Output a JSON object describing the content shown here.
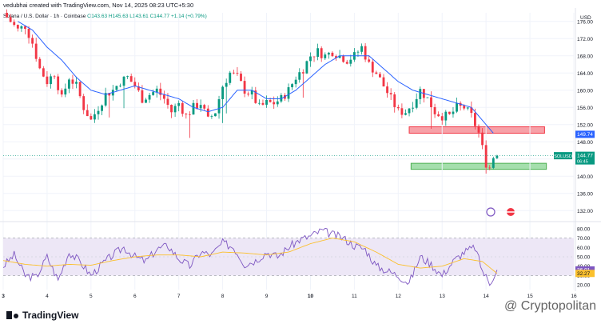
{
  "header": {
    "credit": "vedubhai created with TradingView.com, Nov 14, 2025 08:23 UTC+5:30"
  },
  "legend": {
    "symbol": "Solana / U.S. Dollar · 1h · Coinbase",
    "values": "O143.63  H145.63  L143.61  C144.77  +1.14 (+0.79%)"
  },
  "branding": {
    "logo_text": "TradingView",
    "watermark": "@ Cryptopolitan"
  },
  "colors": {
    "up": "#089981",
    "down": "#f23645",
    "ma": "#2962ff",
    "rsi": "#7e57c2",
    "rsi_ma": "#fbc02d",
    "rsi_band": "#ede7f6",
    "resistance_fill": "#f7a1a8",
    "resistance_stroke": "#f23645",
    "support_fill": "#a5dfac",
    "support_stroke": "#4caf50"
  },
  "chart_data": {
    "type": "candlestick",
    "currency": "USD",
    "ylim": [
      130,
      178
    ],
    "y_ticks": [
      132,
      136,
      140,
      144,
      148,
      152,
      156,
      160,
      164,
      168,
      172,
      176
    ],
    "y_tick_labels": [
      "132.00",
      "136.00",
      "140.00",
      "144.00",
      "148.00",
      "152.00",
      "156.00",
      "160.00",
      "164.00",
      "168.00",
      "172.00",
      "176.00"
    ],
    "x_labels": [
      {
        "t": 0,
        "label": "3"
      },
      {
        "t": 24,
        "label": "4"
      },
      {
        "t": 48,
        "label": "5"
      },
      {
        "t": 72,
        "label": "6"
      },
      {
        "t": 96,
        "label": "7"
      },
      {
        "t": 120,
        "label": "8"
      },
      {
        "t": 144,
        "label": "9"
      },
      {
        "t": 168,
        "label": "10"
      },
      {
        "t": 192,
        "label": "11"
      },
      {
        "t": 216,
        "label": "12"
      },
      {
        "t": 240,
        "label": "13"
      },
      {
        "t": 264,
        "label": "14"
      },
      {
        "t": 288,
        "label": "15"
      },
      {
        "t": 312,
        "label": "16"
      }
    ],
    "x_range": [
      0,
      312
    ],
    "price_anchors": [
      [
        0,
        178
      ],
      [
        4,
        176
      ],
      [
        8,
        174
      ],
      [
        12,
        175
      ],
      [
        16,
        171
      ],
      [
        20,
        165
      ],
      [
        24,
        162
      ],
      [
        28,
        164
      ],
      [
        32,
        158
      ],
      [
        36,
        163
      ],
      [
        40,
        161
      ],
      [
        44,
        156
      ],
      [
        48,
        153
      ],
      [
        52,
        156
      ],
      [
        56,
        159
      ],
      [
        60,
        160
      ],
      [
        64,
        162
      ],
      [
        68,
        163
      ],
      [
        72,
        161
      ],
      [
        76,
        158
      ],
      [
        80,
        159
      ],
      [
        84,
        160
      ],
      [
        88,
        158
      ],
      [
        92,
        155
      ],
      [
        96,
        157
      ],
      [
        100,
        154
      ],
      [
        104,
        156
      ],
      [
        108,
        157
      ],
      [
        112,
        153
      ],
      [
        116,
        155
      ],
      [
        120,
        161
      ],
      [
        124,
        164
      ],
      [
        128,
        163
      ],
      [
        132,
        160
      ],
      [
        136,
        159
      ],
      [
        140,
        156
      ],
      [
        144,
        157
      ],
      [
        148,
        157
      ],
      [
        152,
        158
      ],
      [
        156,
        160
      ],
      [
        160,
        163
      ],
      [
        164,
        165
      ],
      [
        168,
        168
      ],
      [
        172,
        169
      ],
      [
        176,
        168
      ],
      [
        180,
        169
      ],
      [
        184,
        168
      ],
      [
        188,
        167
      ],
      [
        192,
        168
      ],
      [
        196,
        170
      ],
      [
        200,
        166
      ],
      [
        204,
        164
      ],
      [
        208,
        161
      ],
      [
        212,
        158
      ],
      [
        216,
        155
      ],
      [
        220,
        155
      ],
      [
        224,
        157
      ],
      [
        228,
        160
      ],
      [
        232,
        158
      ],
      [
        236,
        155
      ],
      [
        240,
        154
      ],
      [
        244,
        154
      ],
      [
        248,
        156
      ],
      [
        252,
        156
      ],
      [
        256,
        154
      ],
      [
        260,
        150
      ],
      [
        264,
        143
      ],
      [
        266,
        142
      ],
      [
        268,
        144.5
      ],
      [
        270,
        144.77
      ]
    ],
    "ma_anchors": [
      [
        8,
        176
      ],
      [
        16,
        174
      ],
      [
        24,
        170
      ],
      [
        32,
        167
      ],
      [
        40,
        163
      ],
      [
        48,
        160
      ],
      [
        56,
        159
      ],
      [
        64,
        160
      ],
      [
        72,
        161
      ],
      [
        80,
        160
      ],
      [
        88,
        159
      ],
      [
        96,
        158
      ],
      [
        104,
        156
      ],
      [
        112,
        155
      ],
      [
        120,
        156
      ],
      [
        128,
        160
      ],
      [
        136,
        160
      ],
      [
        144,
        158
      ],
      [
        152,
        158
      ],
      [
        160,
        160
      ],
      [
        168,
        163
      ],
      [
        176,
        166
      ],
      [
        184,
        168
      ],
      [
        192,
        168
      ],
      [
        200,
        168
      ],
      [
        208,
        165
      ],
      [
        216,
        162
      ],
      [
        224,
        160
      ],
      [
        232,
        159
      ],
      [
        240,
        158
      ],
      [
        248,
        157
      ],
      [
        256,
        156
      ],
      [
        264,
        152
      ],
      [
        268,
        150
      ]
    ],
    "resistance_zone": {
      "t_start": 222,
      "t_end": 296,
      "low": 150.0,
      "high": 151.5
    },
    "support_zone": {
      "t_start": 223,
      "t_end": 297,
      "low": 141.6,
      "high": 143.0
    },
    "last_price": {
      "symbol": "SOLUSD",
      "value": "144.77",
      "countdown": "06:45"
    },
    "ma_value": {
      "value": "149.74"
    },
    "rsi": {
      "ylim": [
        15,
        85
      ],
      "y_ticks": [
        20,
        30,
        40,
        50,
        60,
        70,
        80
      ],
      "y_tick_labels": [
        "20.00",
        "30.00",
        "40.00",
        "50.00",
        "60.00",
        "70.00",
        "80.00"
      ],
      "band": [
        30,
        70
      ],
      "rsi_value": "36.01",
      "ma_value": "32.27",
      "rsi_anchors": [
        [
          0,
          40
        ],
        [
          6,
          52
        ],
        [
          12,
          30
        ],
        [
          18,
          28
        ],
        [
          24,
          50
        ],
        [
          30,
          25
        ],
        [
          36,
          55
        ],
        [
          42,
          45
        ],
        [
          48,
          30
        ],
        [
          54,
          42
        ],
        [
          60,
          52
        ],
        [
          66,
          60
        ],
        [
          72,
          50
        ],
        [
          78,
          45
        ],
        [
          84,
          58
        ],
        [
          90,
          62
        ],
        [
          96,
          48
        ],
        [
          102,
          40
        ],
        [
          108,
          55
        ],
        [
          114,
          52
        ],
        [
          120,
          65
        ],
        [
          126,
          60
        ],
        [
          132,
          42
        ],
        [
          138,
          46
        ],
        [
          144,
          55
        ],
        [
          150,
          50
        ],
        [
          156,
          60
        ],
        [
          162,
          68
        ],
        [
          168,
          72
        ],
        [
          174,
          78
        ],
        [
          180,
          74
        ],
        [
          186,
          70
        ],
        [
          192,
          62
        ],
        [
          198,
          58
        ],
        [
          204,
          40
        ],
        [
          210,
          35
        ],
        [
          216,
          30
        ],
        [
          222,
          22
        ],
        [
          228,
          50
        ],
        [
          234,
          42
        ],
        [
          240,
          30
        ],
        [
          246,
          45
        ],
        [
          252,
          55
        ],
        [
          258,
          60
        ],
        [
          262,
          35
        ],
        [
          266,
          22
        ],
        [
          270,
          36.01
        ]
      ],
      "rsi_ma_anchors": [
        [
          0,
          46
        ],
        [
          12,
          42
        ],
        [
          24,
          40
        ],
        [
          36,
          42
        ],
        [
          48,
          41
        ],
        [
          60,
          46
        ],
        [
          72,
          50
        ],
        [
          84,
          52
        ],
        [
          96,
          52
        ],
        [
          108,
          50
        ],
        [
          120,
          55
        ],
        [
          132,
          54
        ],
        [
          144,
          52
        ],
        [
          156,
          55
        ],
        [
          168,
          64
        ],
        [
          180,
          70
        ],
        [
          192,
          66
        ],
        [
          204,
          55
        ],
        [
          216,
          42
        ],
        [
          228,
          38
        ],
        [
          240,
          40
        ],
        [
          252,
          48
        ],
        [
          262,
          45
        ],
        [
          270,
          32.27
        ]
      ]
    }
  }
}
